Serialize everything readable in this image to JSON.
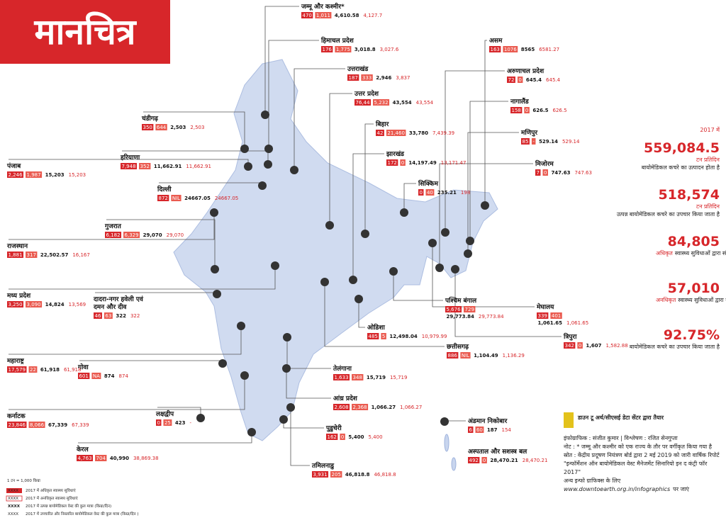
{
  "title": "मानचित्र",
  "states": [
    {
      "name": "जम्मू और कश्मीर*",
      "values": [
        "470",
        "1,011",
        "4,610.58",
        "4,127.7"
      ]
    },
    {
      "name": "हिमाचल प्रदेश",
      "values": [
        "176",
        "1,775",
        "3,018.8",
        "3,027.6"
      ]
    },
    {
      "name": "उत्तराखंड",
      "values": [
        "187",
        "333",
        "2,946",
        "3,837"
      ]
    },
    {
      "name": "उत्तर प्रदेश",
      "values": [
        "76,44",
        "5,232",
        "43,554",
        "43,554"
      ]
    },
    {
      "name": "बिहार",
      "values": [
        "42",
        "21,460",
        "33,780",
        "7,439.39"
      ]
    },
    {
      "name": "झारखंड",
      "values": [
        "172",
        "0",
        "14,197.49",
        "13,171.47"
      ]
    },
    {
      "name": "सिक्किम",
      "values": [
        "0",
        "40",
        "235.21",
        "198"
      ]
    },
    {
      "name": "चंडीगढ़",
      "values": [
        "350",
        "644",
        "2,503",
        "2,503"
      ]
    },
    {
      "name": "हरियाणा",
      "values": [
        "7,948",
        "352",
        "11,662.91",
        "11,662.91"
      ]
    },
    {
      "name": "पंजाब",
      "values": [
        "2,246",
        "1,987",
        "15,203",
        "15,203"
      ]
    },
    {
      "name": "दिल्ली",
      "values": [
        "872",
        "NIL",
        "24667.05",
        "24667.05"
      ]
    },
    {
      "name": "गुजरात",
      "values": [
        "6,182",
        "6,329",
        "29,070",
        "29,070"
      ]
    },
    {
      "name": "राजस्थान",
      "values": [
        "1,881",
        "317",
        "22,502.57",
        "16,167"
      ]
    },
    {
      "name": "मध्य प्रदेश",
      "values": [
        "3,250",
        "3,090",
        "14,824",
        "13,569"
      ]
    },
    {
      "name": "दादरा-नगर हवेली एवं",
      "name_line2": "दमन और दीव",
      "values": [
        "46",
        "63",
        "322",
        "322"
      ]
    },
    {
      "name": "महाराष्ट्र",
      "values": [
        "17,579",
        "22",
        "61,918",
        "61,918"
      ]
    },
    {
      "name": "गोवा",
      "values": [
        "601",
        "NA",
        "874",
        "874"
      ]
    },
    {
      "name": "कर्नाटक",
      "values": [
        "23,846",
        "8,066",
        "67,339",
        "67,339"
      ]
    },
    {
      "name": "लक्षद्वीप",
      "values": [
        "0",
        "25",
        "423",
        "-"
      ]
    },
    {
      "name": "केरल",
      "values": [
        "4,763",
        "704",
        "40,990",
        "38,869.38"
      ]
    },
    {
      "name": "पुडुचेरी",
      "values": [
        "162",
        "0",
        "5,400",
        "5,400"
      ]
    },
    {
      "name": "तमिलनाडु",
      "values": [
        "3,931",
        "205",
        "46,818.8",
        "46,818.8"
      ]
    },
    {
      "name": "आंध्र प्रदेश",
      "values": [
        "2,608",
        "2,368",
        "1,066.27",
        "1,066.27"
      ]
    },
    {
      "name": "तेलंगाना",
      "values": [
        "1,633",
        "348",
        "15,719",
        "15,719"
      ]
    },
    {
      "name": "ओडिशा",
      "values": [
        "485",
        "5",
        "12,498.04",
        "10,979.99"
      ]
    },
    {
      "name": "छत्तीसगढ़",
      "values": [
        "886",
        "NIL",
        "1,104.49",
        "1,136.29"
      ]
    },
    {
      "name": "पश्चिम बंगाल",
      "values": [
        "5,676",
        "729",
        "29,773.84",
        "29,773.84"
      ]
    },
    {
      "name": "मेघालय",
      "values": [
        "339",
        "401",
        "1,061.65",
        "1,061.65"
      ]
    },
    {
      "name": "त्रिपुरा",
      "values": [
        "342",
        "0",
        "1,607",
        "1,582.88"
      ]
    },
    {
      "name": "असम",
      "values": [
        "163",
        "1076",
        "8565",
        "6581.27"
      ]
    },
    {
      "name": "अरुणाचल प्रदेश",
      "values": [
        "72",
        "0",
        "645.4",
        "645.4"
      ]
    },
    {
      "name": "नागालैंड",
      "values": [
        "158",
        "0",
        "626.5",
        "626.5"
      ]
    },
    {
      "name": "मणिपुर",
      "values": [
        "85",
        "-",
        "529.14",
        "529.14"
      ]
    },
    {
      "name": "मिजोरम",
      "values": [
        "7",
        "0",
        "747.63",
        "747.63"
      ]
    },
    {
      "name": "अंडमान निकोबार",
      "values": [
        "6",
        "60",
        "187",
        "154"
      ]
    },
    {
      "name": "अस्पताल और सशस्त्र बल",
      "values": [
        "492",
        "0",
        "28,470.21",
        "28,470.21"
      ]
    }
  ],
  "sidebar": {
    "heading": "2017 में",
    "stats": [
      {
        "value": "559,084.5",
        "unit": "टन प्रतिदिन",
        "text": "बायोमेडिकल कचरे का उत्पादन होता है"
      },
      {
        "value": "518,574",
        "unit": "टन प्रतिदिन",
        "text": "उत्पन्न बायोमेडिकल कचरे का उपचार किया जाता है"
      },
      {
        "value": "84,805",
        "unit": "अधिकृत",
        "text": "स्वास्थ्य सुविधाओं द्वारा संचालन"
      },
      {
        "value": "57,010",
        "unit": "अनधिकृत",
        "text": "स्वास्थ्य सुविधाओं द्वारा संचालन"
      },
      {
        "value": "92.75%",
        "text": "बायोमेडिकल कचरे का उपचार किया जाता है"
      }
    ]
  },
  "credits": {
    "prepared": "डाउन टू अर्थ/सीएसई डेटा सेंटर द्वारा तैयार",
    "byline": "इंफोग्राफिक : संजीत कुमार | विश्लेषण : रजित सेनगुप्ता",
    "note": "नोट : * जम्मू और कश्मीर को एक राज्य के तौर पर वर्गीकृत किया गया है",
    "source": "स्रोत : केंद्रीय प्रदूषण नियंत्रण बोर्ड द्वारा 2 मई 2019 को जारी वार्षिक रिपोर्ट \"इन्फॉर्मेशन ऑन बायोमेडिकल वेस्ट मैनेजमेंट सिनारियो इन द कंट्री फॉर 2017\"",
    "more": "अन्य इन्फो ग्राफिक्स के लिए",
    "url": "www.downtoearth.org.in/infographics",
    "visit": "पर जाएं"
  },
  "legend": {
    "unit": "1 टन = 1,000 किग्रा",
    "items": [
      {
        "sample": "XXXX",
        "text": "2017 में अधिकृत स्वास्थ्य सुविधाएं"
      },
      {
        "sample": "XXXX",
        "text": "2017 में अनधिकृत स्वास्थ्य सुविधाएं"
      },
      {
        "sample": "XXXX",
        "text": "2017 में उत्पन्न बायोमेडिकल वेस्ट की कुल मात्रा (किग्रा/दिन)"
      },
      {
        "sample": "XXXX",
        "text": "2017 में उपचारित और निस्तारित बायोमेडिकल वेस्ट की कुल मात्रा (किग्रा/दिन )"
      }
    ]
  }
}
